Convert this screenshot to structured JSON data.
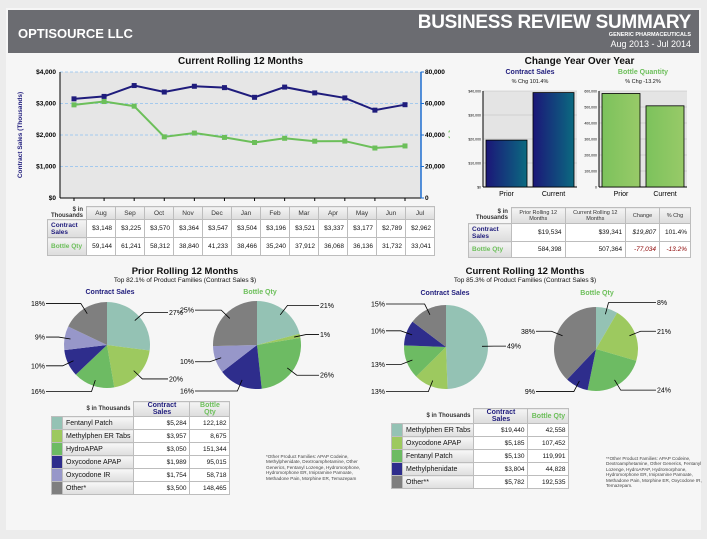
{
  "header": {
    "company": "OPTISOURCE LLC",
    "title": "BUSINESS REVIEW SUMMARY",
    "subtitle": "GENERIC PHARMACEUTICALS",
    "date_range": "Aug 2013 - Jul 2014"
  },
  "colors": {
    "navy": "#1f1c7c",
    "green": "#6cbf5a",
    "header_bg": "#6b6c71",
    "slices": [
      "#94c2b4",
      "#9dc95f",
      "#6dbb63",
      "#2e2d8c",
      "#9797c9",
      "#7f7f7f"
    ],
    "current_slices": [
      "#94c2b4",
      "#9dc95f",
      "#6dbb63",
      "#2e2d8c",
      "#7f7f7f"
    ]
  },
  "rolling": {
    "title": "Current Rolling 12 Months",
    "left_axis_label": "Contract Sales (Thousands)",
    "right_axis_label": "Bottle Qty",
    "left_ticks": [
      "$0",
      "$1,000",
      "$2,000",
      "$3,000",
      "$4,000"
    ],
    "right_ticks": [
      "0",
      "20,000",
      "40,000",
      "60,000",
      "80,000"
    ],
    "table": {
      "corner": "$ in Thousands",
      "months": [
        "Aug",
        "Sep",
        "Oct",
        "Nov",
        "Dec",
        "Jan",
        "Feb",
        "Mar",
        "Apr",
        "May",
        "Jun",
        "Jul"
      ],
      "rows": [
        {
          "label": "Contract Sales",
          "values": [
            "$3,148",
            "$3,225",
            "$3,570",
            "$3,364",
            "$3,547",
            "$3,504",
            "$3,196",
            "$3,521",
            "$3,337",
            "$3,177",
            "$2,789",
            "$2,962"
          ]
        },
        {
          "label": "Bottle Qty",
          "values": [
            "59,144",
            "61,241",
            "58,312",
            "38,840",
            "41,233",
            "38,466",
            "35,240",
            "37,912",
            "36,068",
            "36,136",
            "31,732",
            "33,041"
          ]
        }
      ]
    }
  },
  "yoy": {
    "title": "Change Year Over Year",
    "contract": {
      "title": "Contract Sales",
      "pct": "% Chg 101.4%",
      "ticks": [
        "$0",
        "$10,000",
        "$20,000",
        "$30,000",
        "$40,000"
      ]
    },
    "bottle": {
      "title": "Bottle Quantity",
      "pct": "% Chg -13.2%",
      "ticks": [
        "0",
        "100,000",
        "200,000",
        "300,000",
        "400,000",
        "500,000",
        "600,000"
      ]
    },
    "table": {
      "corner": "$ in Thousands",
      "headers": [
        "Prior Rolling 12 Months",
        "Current Rolling 12 Months",
        "Change",
        "% Chg"
      ],
      "rows": [
        {
          "label": "Contract Sales",
          "values": [
            "$19,534",
            "$39,341",
            "$19,807",
            "101.4%"
          ]
        },
        {
          "label": "Bottle Qty",
          "values": [
            "584,398",
            "507,364",
            "-77,034",
            "-13.2%"
          ]
        }
      ]
    }
  },
  "prior": {
    "title": "Prior Rolling 12 Months",
    "subtitle": "Top 82.1% of Product Families (Contract Sales $)",
    "pie1_title": "Contract Sales",
    "pie2_title": "Bottle Qty",
    "table": {
      "corner": "$ in Thousands",
      "h1": "Contract Sales",
      "h2": "Bottle Qty",
      "rows": [
        {
          "name": "Fentanyl Patch",
          "sales": "$5,284",
          "qty": "122,182"
        },
        {
          "name": "Methylphen ER Tabs",
          "sales": "$3,957",
          "qty": "8,675"
        },
        {
          "name": "HydroAPAP",
          "sales": "$3,050",
          "qty": "151,344"
        },
        {
          "name": "Oxycodone APAP",
          "sales": "$1,989",
          "qty": "95,015"
        },
        {
          "name": "Oxycodone IR",
          "sales": "$1,754",
          "qty": "58,718"
        },
        {
          "name": "Other*",
          "sales": "$3,500",
          "qty": "148,465"
        }
      ]
    },
    "footnote": "*Other Product Families: APAP Codeine, Methylphenidate, Dextroamphetamine, Other Generics, Fentanyl Lozenge, Hydromorphone, Hydromorphone ER, Imipramine Pamoate, Methadone Pain, Morphine ER, Temazepam"
  },
  "current": {
    "title": "Current Rolling 12 Months",
    "subtitle": "Top 85.3% of Product Families (Contract Sales $)",
    "pie1_title": "Contract Sales",
    "pie2_title": "Bottle Qty",
    "table": {
      "corner": "$ in Thousands",
      "h1": "Contract Sales",
      "h2": "Bottle Qty",
      "rows": [
        {
          "name": "Methylphen ER Tabs",
          "sales": "$19,440",
          "qty": "42,558"
        },
        {
          "name": "Oxycodone APAP",
          "sales": "$5,185",
          "qty": "107,452"
        },
        {
          "name": "Fentanyl Patch",
          "sales": "$5,130",
          "qty": "119,991"
        },
        {
          "name": "Methylphenidate",
          "sales": "$3,804",
          "qty": "44,828"
        },
        {
          "name": "Other**",
          "sales": "$5,782",
          "qty": "192,535"
        }
      ]
    },
    "footnote": "**Other Product Families: APAP Codeine, Dextroamphetamine, Other Generics, Fentanyl Lozenge, HydroAPAP, Hydromorphone, Hydromorphone ER, Imipramine Pamoate, Methadone Pain, Morphine ER, Oxycodone IR, Temazepam."
  },
  "chart_data": [
    {
      "id": "rolling",
      "type": "line",
      "title": "Current Rolling 12 Months",
      "x": [
        "Aug",
        "Sep",
        "Oct",
        "Nov",
        "Dec",
        "Jan",
        "Feb",
        "Mar",
        "Apr",
        "May",
        "Jun",
        "Jul"
      ],
      "ylabel": "Contract Sales (Thousands)",
      "y2label": "Bottle Qty",
      "ylim": [
        0,
        4000
      ],
      "y2lim": [
        0,
        80000
      ],
      "grid": true,
      "series": [
        {
          "name": "Contract Sales",
          "axis": "left",
          "values": [
            3148,
            3225,
            3570,
            3364,
            3547,
            3504,
            3196,
            3521,
            3337,
            3177,
            2789,
            2962
          ]
        },
        {
          "name": "Bottle Qty",
          "axis": "right",
          "values": [
            59144,
            61241,
            58312,
            38840,
            41233,
            38466,
            35240,
            37912,
            36068,
            36136,
            31732,
            33041
          ]
        }
      ]
    },
    {
      "id": "yoy-contract",
      "type": "bar",
      "title": "Contract Sales",
      "categories": [
        "Prior",
        "Current"
      ],
      "values": [
        19534,
        39341
      ],
      "ylim": [
        0,
        40000
      ]
    },
    {
      "id": "yoy-bottle",
      "type": "bar",
      "title": "Bottle Quantity",
      "categories": [
        "Prior",
        "Current"
      ],
      "values": [
        584398,
        507364
      ],
      "ylim": [
        0,
        600000
      ]
    },
    {
      "id": "prior-sales",
      "type": "pie",
      "title": "Contract Sales",
      "categories": [
        "Fentanyl Patch",
        "Methylphen ER Tabs",
        "HydroAPAP",
        "Oxycodone APAP",
        "Oxycodone IR",
        "Other*"
      ],
      "values": [
        5284,
        3957,
        3050,
        1989,
        1754,
        3500
      ],
      "labels": [
        "27%",
        "20%",
        "16%",
        "10%",
        "9%",
        "18%"
      ]
    },
    {
      "id": "prior-qty",
      "type": "pie",
      "title": "Bottle Qty",
      "categories": [
        "Fentanyl Patch",
        "Methylphen ER Tabs",
        "HydroAPAP",
        "Oxycodone APAP",
        "Oxycodone IR",
        "Other*"
      ],
      "values": [
        122182,
        8675,
        151344,
        95015,
        58718,
        148465
      ],
      "labels": [
        "21%",
        "1%",
        "26%",
        "16%",
        "10%",
        "25%"
      ]
    },
    {
      "id": "current-sales",
      "type": "pie",
      "title": "Contract Sales",
      "categories": [
        "Methylphen ER Tabs",
        "Oxycodone APAP",
        "Fentanyl Patch",
        "Methylphenidate",
        "Other**"
      ],
      "values": [
        19440,
        5185,
        5130,
        3804,
        5782
      ],
      "labels": [
        "49%",
        "13%",
        "13%",
        "10%",
        "15%"
      ]
    },
    {
      "id": "current-qty",
      "type": "pie",
      "title": "Bottle Qty",
      "categories": [
        "Methylphen ER Tabs",
        "Oxycodone APAP",
        "Fentanyl Patch",
        "Methylphenidate",
        "Other**"
      ],
      "values": [
        42558,
        107452,
        119991,
        44828,
        192535
      ],
      "labels": [
        "8%",
        "21%",
        "24%",
        "9%",
        "38%"
      ]
    }
  ]
}
